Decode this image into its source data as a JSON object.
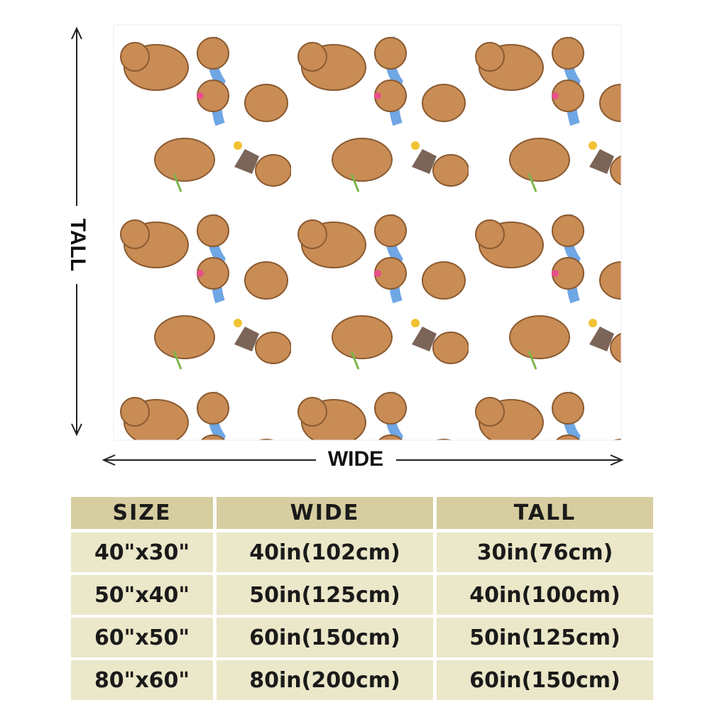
{
  "dimensions": {
    "tall": "TALL",
    "wide": "WIDE"
  },
  "table": {
    "header": [
      "SIZE",
      "WIDE",
      "TALL"
    ],
    "rows": [
      [
        "40\"x30\"",
        "40in(102cm)",
        "30in(76cm)"
      ],
      [
        "50\"x40\"",
        "50in(125cm)",
        "40in(100cm)"
      ],
      [
        "60\"x50\"",
        "60in(150cm)",
        "50in(125cm)"
      ],
      [
        "80\"x60\"",
        "80in(200cm)",
        "60in(150cm)"
      ]
    ]
  }
}
